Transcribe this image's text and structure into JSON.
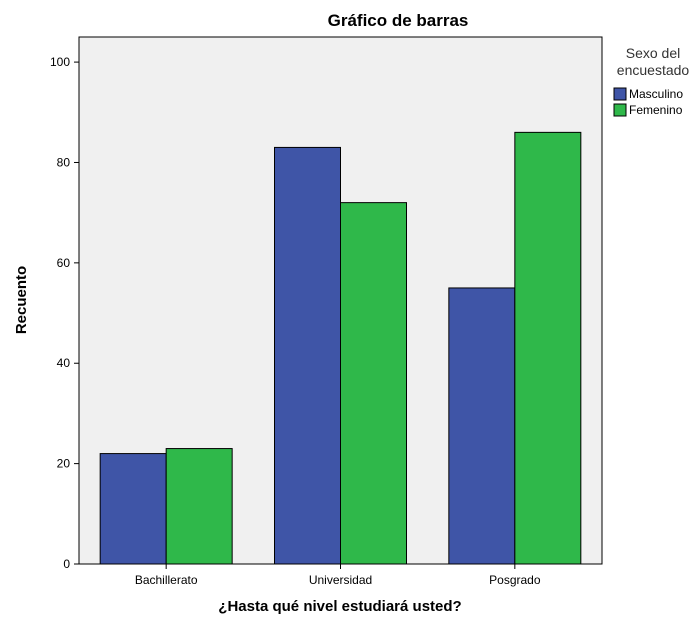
{
  "chart_data": {
    "type": "bar",
    "title": "Gráfico de barras",
    "xlabel": "¿Hasta qué nivel estudiará usted?",
    "ylabel": "Recuento",
    "categories": [
      "Bachillerato",
      "Universidad",
      "Posgrado"
    ],
    "series": [
      {
        "name": "Masculino",
        "values": [
          22,
          83,
          55
        ],
        "color": "#3f55a7"
      },
      {
        "name": "Femenino",
        "values": [
          23,
          72,
          86
        ],
        "color": "#2fb84a"
      }
    ],
    "ylim": [
      0,
      105
    ],
    "yticks": [
      0,
      20,
      40,
      60,
      80,
      100
    ],
    "legend": {
      "title_lines": [
        "Sexo del",
        "encuestado"
      ],
      "placement": "right"
    },
    "grid": false,
    "plot_background": "#f0f0f0"
  }
}
